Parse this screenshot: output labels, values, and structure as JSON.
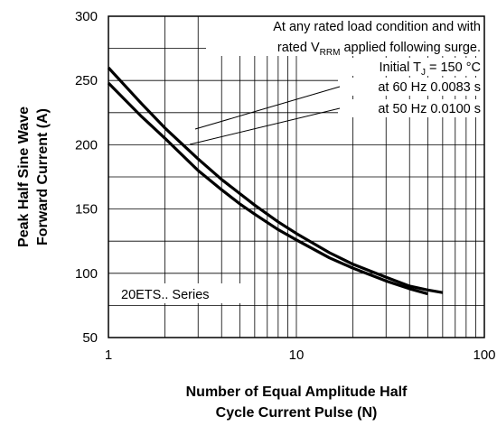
{
  "chart_data": {
    "type": "line",
    "title": "",
    "x_scale": "log",
    "xlim": [
      1,
      100
    ],
    "ylim": [
      50,
      300
    ],
    "grid": true,
    "xlabel": [
      "Number of Equal Amplitude Half",
      "Cycle Current Pulse (N)"
    ],
    "ylabel": [
      "Peak Half Sine Wave",
      "Forward Current (A)"
    ],
    "x_tick_labels": [
      "1",
      "10",
      "100"
    ],
    "x_ticks": [
      1,
      10,
      100
    ],
    "y_ticks": [
      50,
      100,
      150,
      200,
      250,
      300
    ],
    "y_tick_labels": [
      "50",
      "100",
      "150",
      "200",
      "250",
      "300"
    ],
    "series": [
      {
        "x": [
          1,
          1.5,
          2,
          3,
          4,
          5,
          6,
          8,
          10,
          15,
          20,
          30,
          40,
          50,
          60
        ],
        "y": [
          260,
          232,
          213,
          189,
          173,
          162,
          153,
          140,
          131,
          116,
          107,
          97,
          90,
          87,
          85
        ]
      },
      {
        "x": [
          1,
          1.5,
          2,
          3,
          4,
          5,
          6,
          8,
          10,
          15,
          20,
          30,
          40,
          50
        ],
        "y": [
          248,
          222,
          205,
          180,
          165,
          154,
          146,
          134,
          126,
          112,
          104,
          94,
          88,
          84
        ]
      }
    ],
    "annotations": {
      "condition_line1": "At any rated load condition and with",
      "condition_line2_pre": "rated V",
      "condition_line2_sub": "RRM",
      "condition_line2_post": " applied following surge.",
      "initial_pre": "Initial T",
      "initial_sub": "J",
      "initial_post": " = 150 °C",
      "hz60": "at 60 Hz 0.0083 s",
      "hz50": "at 50 Hz 0.0100 s",
      "series_label": "20ETS.. Series"
    }
  }
}
